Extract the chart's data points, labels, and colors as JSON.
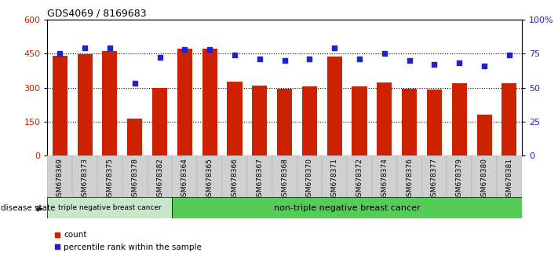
{
  "title": "GDS4069 / 8169683",
  "samples": [
    "GSM678369",
    "GSM678373",
    "GSM678375",
    "GSM678378",
    "GSM678382",
    "GSM678364",
    "GSM678365",
    "GSM678366",
    "GSM678367",
    "GSM678368",
    "GSM678370",
    "GSM678371",
    "GSM678372",
    "GSM678374",
    "GSM678376",
    "GSM678377",
    "GSM678379",
    "GSM678380",
    "GSM678381"
  ],
  "counts": [
    440,
    447,
    460,
    165,
    300,
    470,
    472,
    325,
    308,
    295,
    305,
    435,
    305,
    322,
    295,
    292,
    318,
    180,
    320
  ],
  "percentiles": [
    75,
    79,
    79,
    53,
    72,
    78,
    78,
    74,
    71,
    70,
    71,
    79,
    71,
    75,
    70,
    67,
    68,
    66,
    74
  ],
  "bar_color": "#cc2200",
  "dot_color": "#2222cc",
  "triple_negative_count": 5,
  "non_triple_negative_count": 14,
  "triple_negative_label": "triple negative breast cancer",
  "non_triple_negative_label": "non-triple negative breast cancer",
  "disease_state_label": "disease state",
  "legend_count_label": "count",
  "legend_percentile_label": "percentile rank within the sample",
  "ylim_left": [
    0,
    600
  ],
  "ylim_right": [
    0,
    100
  ],
  "yticks_left": [
    0,
    150,
    300,
    450,
    600
  ],
  "yticks_right": [
    0,
    25,
    50,
    75,
    100
  ],
  "ytick_labels_right": [
    "0",
    "25",
    "50",
    "75",
    "100%"
  ],
  "grid_values": [
    150,
    300,
    450
  ],
  "triple_neg_bg": "#c8e6c8",
  "non_triple_neg_bg": "#55cc55",
  "xtick_bg": "#d0d0d0",
  "bar_width": 0.6
}
